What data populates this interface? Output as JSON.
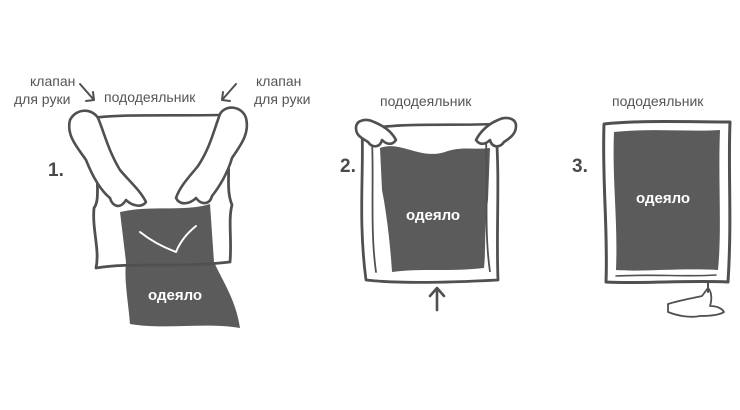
{
  "steps": [
    {
      "number": "1.",
      "cover_label": "пододеяльник",
      "left_label_line1": "клапан",
      "left_label_line2": "для руки",
      "right_label_line1": "клапан",
      "right_label_line2": "для руки",
      "blanket_label": "одеяло"
    },
    {
      "number": "2.",
      "cover_label": "пододеяльник",
      "blanket_label": "одеяло"
    },
    {
      "number": "3.",
      "cover_label": "пододеяльник",
      "blanket_label": "одеяло"
    }
  ],
  "colors": {
    "blanket": "#5b5b5b",
    "outline": "#505050",
    "skin": "#ffffff"
  },
  "icons": [
    "arrow-down-right-icon",
    "arrow-down-left-icon",
    "arrow-up-icon",
    "hand-icon"
  ]
}
